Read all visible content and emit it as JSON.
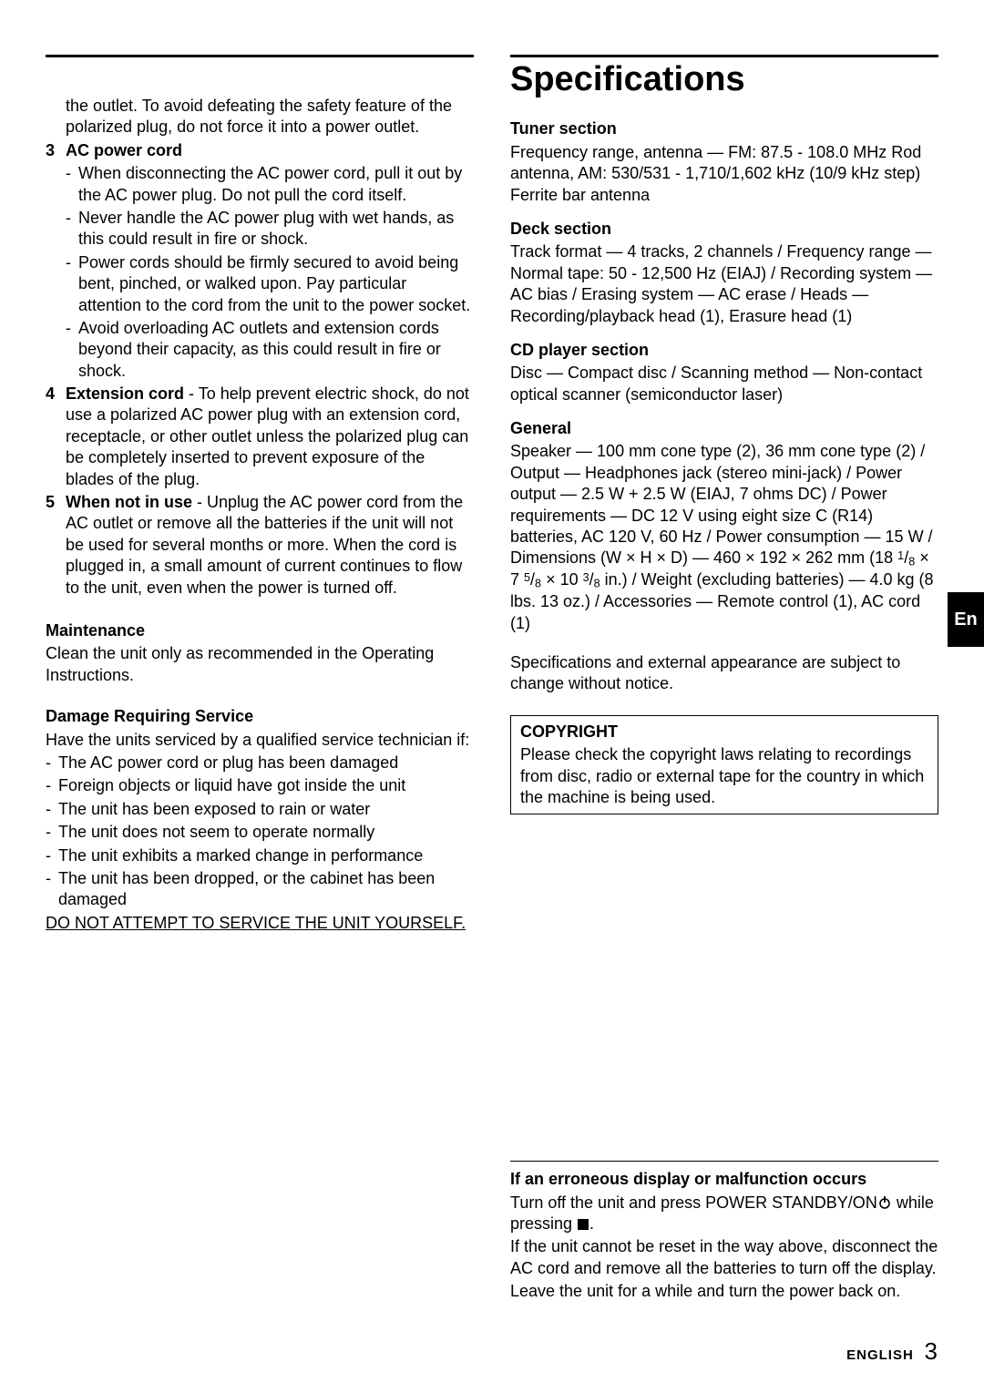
{
  "lang_tab": "En",
  "page_title": "Specifications",
  "left": {
    "intro_continuation": "the outlet. To avoid defeating the safety feature of the polarized plug, do not force it into a power outlet.",
    "item3": {
      "num": "3",
      "label": "AC power cord",
      "bullets": [
        "When disconnecting the AC power cord, pull it out by the AC power plug. Do not pull the cord itself.",
        "Never handle the AC power plug with wet hands, as this could result in fire or shock.",
        "Power cords should be firmly secured to avoid being bent, pinched, or walked upon. Pay particular attention to the cord from the unit to the power socket.",
        "Avoid overloading AC outlets and extension cords beyond their capacity, as this could result in fire or shock."
      ]
    },
    "item4": {
      "num": "4",
      "label": "Extension cord",
      "text": " - To help prevent electric shock, do not use a polarized AC power plug with an extension cord, receptacle, or other outlet unless the polarized plug can be completely inserted to prevent exposure of the blades of the plug."
    },
    "item5": {
      "num": "5",
      "label": "When not in use",
      "text": " - Unplug the AC power cord from the AC outlet or remove all the batteries if the unit will not be used for several months or more. When the cord is plugged in, a small amount of current continues to flow to the unit, even when the power is turned off."
    },
    "maintenance": {
      "head": "Maintenance",
      "text": "Clean the unit only as recommended in the Operating Instructions."
    },
    "damage": {
      "head": "Damage Requiring Service",
      "intro": "Have the units serviced by a qualified service technician if:",
      "bullets": [
        "The AC power cord or plug has been damaged",
        "Foreign objects or liquid have got inside the unit",
        "The unit has been exposed to rain or water",
        "The unit does not seem to operate normally",
        "The unit exhibits a marked change in performance",
        "The unit has been dropped, or the cabinet has been damaged"
      ],
      "warn": "DO NOT ATTEMPT TO SERVICE THE UNIT YOURSELF."
    }
  },
  "right": {
    "tuner": {
      "head": "Tuner section",
      "text": "Frequency range, antenna — FM: 87.5 - 108.0 MHz Rod antenna, AM: 530/531 - 1,710/1,602 kHz (10/9 kHz step) Ferrite bar antenna"
    },
    "deck": {
      "head": "Deck section",
      "text": "Track format — 4 tracks, 2 channels / Frequency range — Normal tape: 50 - 12,500 Hz (EIAJ) / Recording system — AC bias / Erasing system — AC erase / Heads — Recording/playback head (1), Erasure head (1)"
    },
    "cd": {
      "head": "CD player section",
      "text": "Disc — Compact disc / Scanning method — Non-contact optical scanner (semiconductor laser)"
    },
    "general": {
      "head": "General",
      "text_pre": "Speaker — 100 mm cone type (2), 36 mm cone type (2) / Output — Headphones jack (stereo mini-jack) / Power output — 2.5 W + 2.5 W (EIAJ, 7 ohms DC) / Power requirements — DC 12 V using eight size C (R14) batteries, AC 120 V, 60 Hz / Power consumption — 15 W / Dimensions (W × H × D) — 460 × 192 × 262 mm (18 ",
      "f1a": "1",
      "f1b": "8",
      "f2a": "5",
      "f2b": "8",
      "f3a": "3",
      "f3b": "8",
      "text_mid1": " × 7 ",
      "text_mid2": " × 10 ",
      "text_post": " in.) / Weight (excluding batteries) — 4.0 kg (8 lbs. 13 oz.) / Accessories — Remote control (1), AC cord (1)"
    },
    "note": "Specifications and external appearance are subject to change without notice.",
    "copyright": {
      "head": "COPYRIGHT",
      "text": "Please check the copyright laws relating to recordings from disc, radio or external tape for the country in which the machine is being used."
    },
    "malfunction": {
      "head": "If an erroneous display or malfunction occurs",
      "line1_pre": "Turn off the unit and press POWER STANDBY/ON",
      "line1_post": " while pressing ",
      "line1_end": ".",
      "line2": "If the unit cannot be reset in the way above, disconnect the AC cord and remove all the batteries to turn off the display.",
      "line3": "Leave the unit for a while and turn the power back on."
    }
  },
  "footer": {
    "label": "ENGLISH",
    "page": "3"
  }
}
